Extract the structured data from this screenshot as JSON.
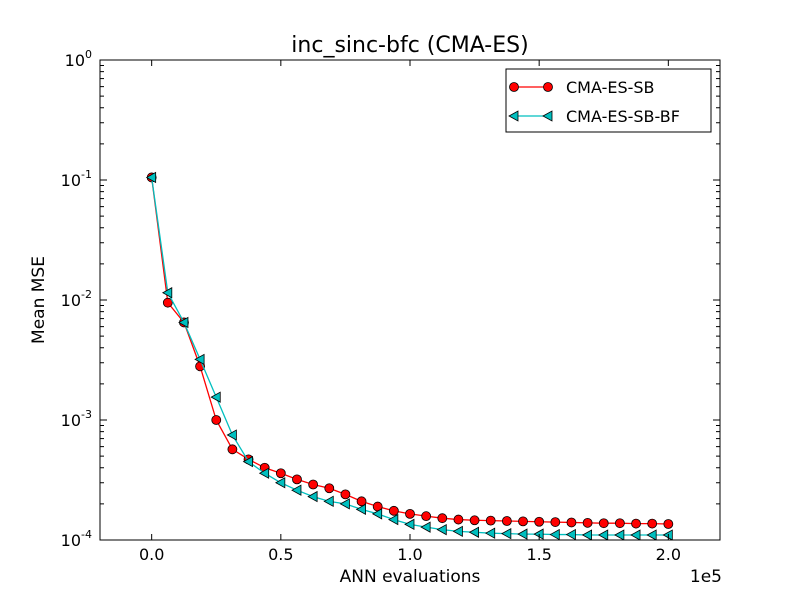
{
  "chart_data": {
    "type": "line",
    "title": "inc_sinc-bfc (CMA-ES)",
    "xlabel": "ANN evaluations",
    "ylabel": "Mean MSE",
    "x_offset_label": "1e5",
    "xlim": [
      -0.2,
      2.2
    ],
    "ylim": [
      0.0001,
      1
    ],
    "yscale": "log",
    "x_ticks": [
      0.0,
      0.5,
      1.0,
      1.5,
      2.0
    ],
    "x_tick_labels": [
      "0.0",
      "0.5",
      "1.0",
      "1.5",
      "2.0"
    ],
    "y_ticks": [
      0.0001,
      0.001,
      0.01,
      0.1,
      1
    ],
    "y_tick_labels": [
      {
        "base": "10",
        "exp": "-4"
      },
      {
        "base": "10",
        "exp": "-3"
      },
      {
        "base": "10",
        "exp": "-2"
      },
      {
        "base": "10",
        "exp": "-1"
      },
      {
        "base": "10",
        "exp": "0"
      }
    ],
    "x": [
      0.0,
      0.0625,
      0.125,
      0.1875,
      0.25,
      0.3125,
      0.375,
      0.4375,
      0.5,
      0.5625,
      0.625,
      0.6875,
      0.75,
      0.8125,
      0.875,
      0.9375,
      1.0,
      1.0625,
      1.125,
      1.1875,
      1.25,
      1.3125,
      1.375,
      1.4375,
      1.5,
      1.5625,
      1.625,
      1.6875,
      1.75,
      1.8125,
      1.875,
      1.9375,
      2.0
    ],
    "series": [
      {
        "name": "CMA-ES-SB",
        "color": "#ff0000",
        "marker": "circle",
        "values": [
          0.105,
          0.0095,
          0.0065,
          0.0028,
          0.001,
          0.00057,
          0.00047,
          0.0004,
          0.00036,
          0.00032,
          0.00029,
          0.00027,
          0.00024,
          0.00021,
          0.00019,
          0.000175,
          0.000165,
          0.000158,
          0.000152,
          0.000148,
          0.000146,
          0.000145,
          0.000144,
          0.000143,
          0.000142,
          0.000141,
          0.00014,
          0.000139,
          0.000138,
          0.000138,
          0.000137,
          0.000137,
          0.000136
        ]
      },
      {
        "name": "CMA-ES-SB-BF",
        "color": "#00bfbf",
        "marker": "triangle-left",
        "values": [
          0.105,
          0.0115,
          0.0065,
          0.0032,
          0.00155,
          0.00075,
          0.00045,
          0.00036,
          0.0003,
          0.00026,
          0.00023,
          0.00021,
          0.0002,
          0.00018,
          0.000165,
          0.000148,
          0.000135,
          0.000128,
          0.000122,
          0.000118,
          0.000116,
          0.000114,
          0.000113,
          0.000112,
          0.000112,
          0.000111,
          0.000111,
          0.00011,
          0.00011,
          0.00011,
          0.00011,
          0.00011,
          0.00011
        ]
      }
    ],
    "legend_position": "top-right"
  }
}
